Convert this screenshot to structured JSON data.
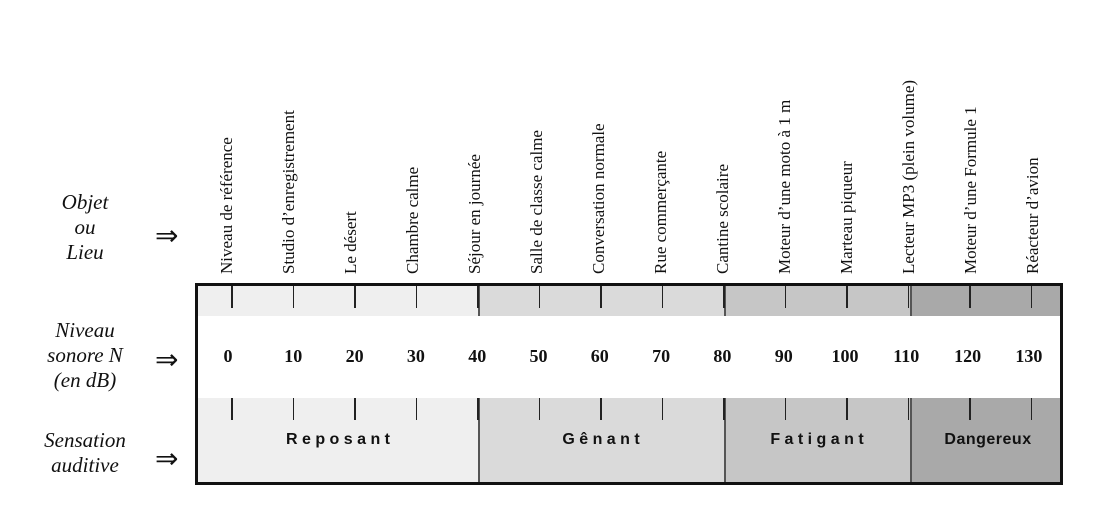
{
  "row_labels": {
    "object": [
      "Objet",
      "ou",
      "Lieu"
    ],
    "level": [
      "Niveau",
      "sonore N",
      "(en dB)"
    ],
    "sensation": [
      "Sensation",
      "auditive"
    ]
  },
  "arrow_symbol": "⇒",
  "objects": [
    "Niveau de référence",
    "Studio d’enregistrement",
    "Le désert",
    "Chambre calme",
    "Séjour en journée",
    "Salle de classe calme",
    "Conversation normale",
    "Rue commerçante",
    "Cantine scolaire",
    "Moteur d’une moto à 1 m",
    "Marteau piqueur",
    "Lecteur MP3 (plein volume)",
    "Moteur d’une Formule 1",
    "Réacteur d’avion"
  ],
  "levels": [
    "0",
    "10",
    "20",
    "30",
    "40",
    "50",
    "60",
    "70",
    "80",
    "90",
    "100",
    "110",
    "120",
    "130"
  ],
  "zones": [
    {
      "label": "R e p o s a n t",
      "color": "#efefef"
    },
    {
      "label": "G ê n a n t",
      "color": "#dadada"
    },
    {
      "label": "F a t i g a n t",
      "color": "#c6c6c6"
    },
    {
      "label": "Dangereux",
      "color": "#a9a9a9"
    }
  ]
}
